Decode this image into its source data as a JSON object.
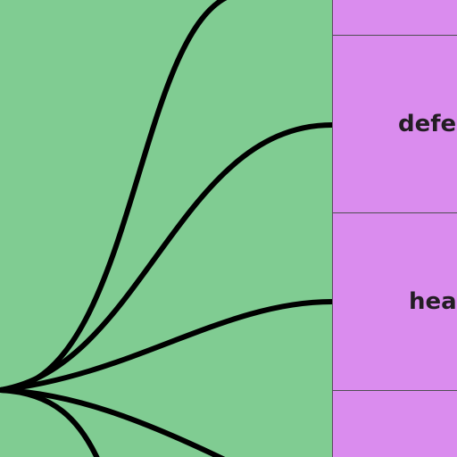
{
  "diagram": {
    "background_color": "#80cc92",
    "panel_color": "#da8cee",
    "link_color": "#000000",
    "nodes": [
      {
        "label": ""
      },
      {
        "label": "defe"
      },
      {
        "label": "hea"
      },
      {
        "label": ""
      }
    ]
  }
}
